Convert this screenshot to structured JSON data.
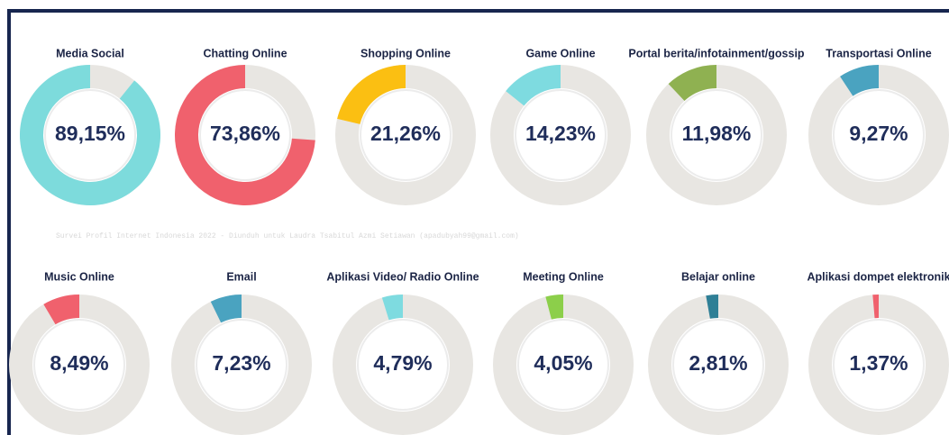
{
  "chart_data": {
    "type": "donut",
    "categories": [
      "Media Social",
      "Chatting Online",
      "Shopping Online",
      "Game Online",
      "Portal berita/infotainment/gossip",
      "Transportasi Online",
      "Music Online",
      "Email",
      "Aplikasi Video/ Radio Online",
      "Meeting Online",
      "Belajar online",
      "Aplikasi dompet elektronik"
    ],
    "values": [
      89.15,
      73.86,
      21.26,
      14.23,
      11.98,
      9.27,
      8.49,
      7.23,
      4.79,
      4.05,
      2.81,
      1.37
    ],
    "value_labels": [
      "89,15%",
      "73,86%",
      "21,26%",
      "14,23%",
      "11,98%",
      "9,27%",
      "8,49%",
      "7,23%",
      "4,79%",
      "4,05%",
      "2,81%",
      "1,37%"
    ],
    "colors": [
      "#7ddbdc",
      "#f0616d",
      "#fbbf12",
      "#7edbe0",
      "#8fb151",
      "#4aa3c0",
      "#f0616d",
      "#4aa3c0",
      "#7edbe0",
      "#8ccf4a",
      "#2f7f96",
      "#f0616d"
    ],
    "watermark": "Survei Profil Internet Indonesia 2022 - Diunduh untuk Laudra Tsabitul Azmi Setiawan (apadubyah99@gmail.com)"
  }
}
